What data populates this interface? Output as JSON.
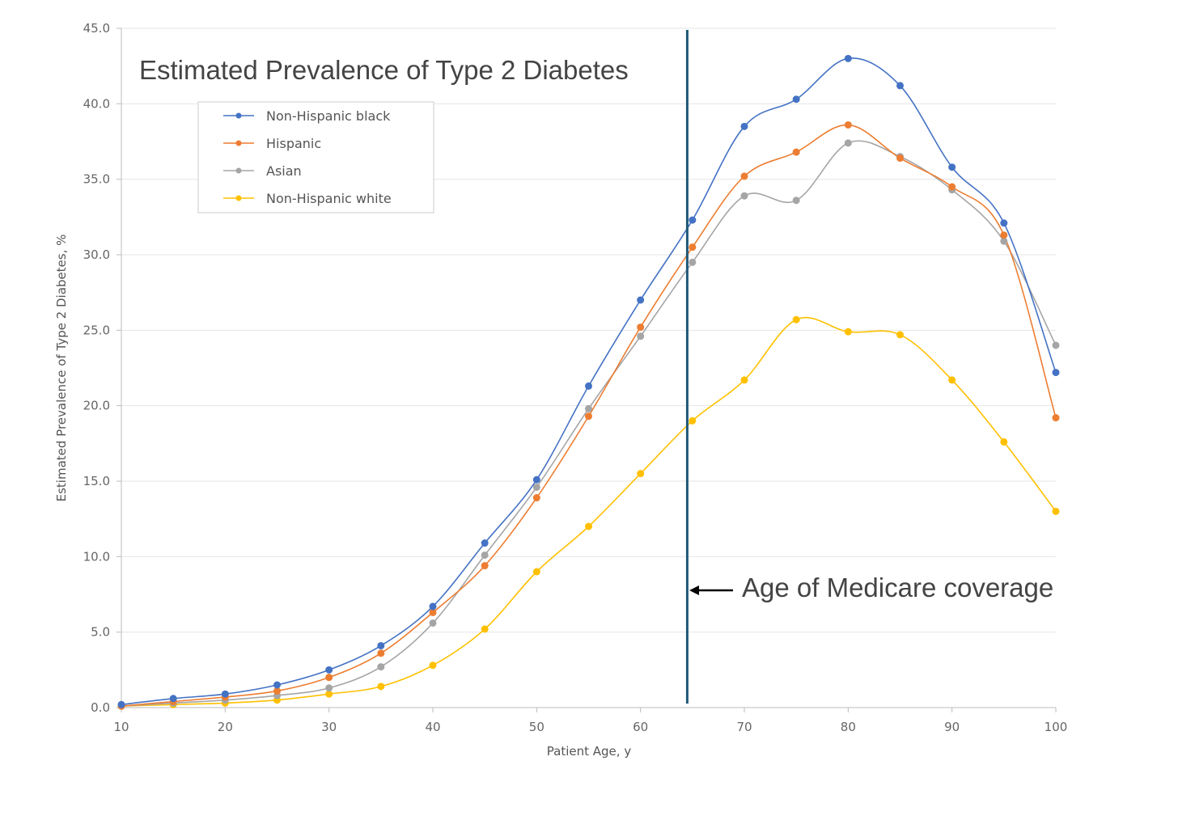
{
  "chart_data": {
    "type": "line",
    "title": "Estimated Prevalence of Type 2 Diabetes",
    "xlabel": "Patient Age, y",
    "ylabel": "Estimated Prevalence of Type 2 Diabetes, %",
    "xlim": [
      10,
      100
    ],
    "ylim": [
      0,
      45
    ],
    "xticks": [
      "10",
      "20",
      "30",
      "40",
      "50",
      "60",
      "70",
      "80",
      "90",
      "100"
    ],
    "yticks": [
      "0.0",
      "5.0",
      "10.0",
      "15.0",
      "20.0",
      "25.0",
      "30.0",
      "35.0",
      "40.0",
      "45.0"
    ],
    "grid": true,
    "legend_position": "top-left",
    "x": [
      10,
      15,
      20,
      25,
      30,
      35,
      40,
      45,
      50,
      55,
      60,
      65,
      70,
      75,
      80,
      85,
      90,
      95,
      100
    ],
    "series": [
      {
        "name": "Non-Hispanic black",
        "color": "#4472C4",
        "values": [
          0.2,
          0.6,
          0.9,
          1.5,
          2.5,
          4.1,
          6.7,
          10.9,
          15.1,
          21.3,
          27.0,
          32.3,
          38.5,
          40.3,
          43.0,
          41.2,
          35.8,
          32.1,
          22.2
        ]
      },
      {
        "name": "Hispanic",
        "color": "#ED7D31",
        "values": [
          0.1,
          0.4,
          0.7,
          1.1,
          2.0,
          3.6,
          6.3,
          9.4,
          13.9,
          19.3,
          25.2,
          30.5,
          35.2,
          36.8,
          38.6,
          36.4,
          34.5,
          31.3,
          19.2
        ]
      },
      {
        "name": "Asian",
        "color": "#A5A5A5",
        "values": [
          0.1,
          0.3,
          0.5,
          0.8,
          1.3,
          2.7,
          5.6,
          10.1,
          14.6,
          19.8,
          24.6,
          29.5,
          33.9,
          33.6,
          37.4,
          36.5,
          34.3,
          30.9,
          24.0
        ]
      },
      {
        "name": "Non-Hispanic white",
        "color": "#FFC000",
        "values": [
          0.1,
          0.2,
          0.3,
          0.5,
          0.9,
          1.4,
          2.8,
          5.2,
          9.0,
          12.0,
          15.5,
          19.0,
          21.7,
          25.7,
          24.9,
          24.7,
          21.7,
          17.6,
          13.0
        ]
      }
    ],
    "annotation": {
      "text": "Age of Medicare coverage",
      "x": 64.5,
      "line_color": "#1F5978"
    }
  }
}
